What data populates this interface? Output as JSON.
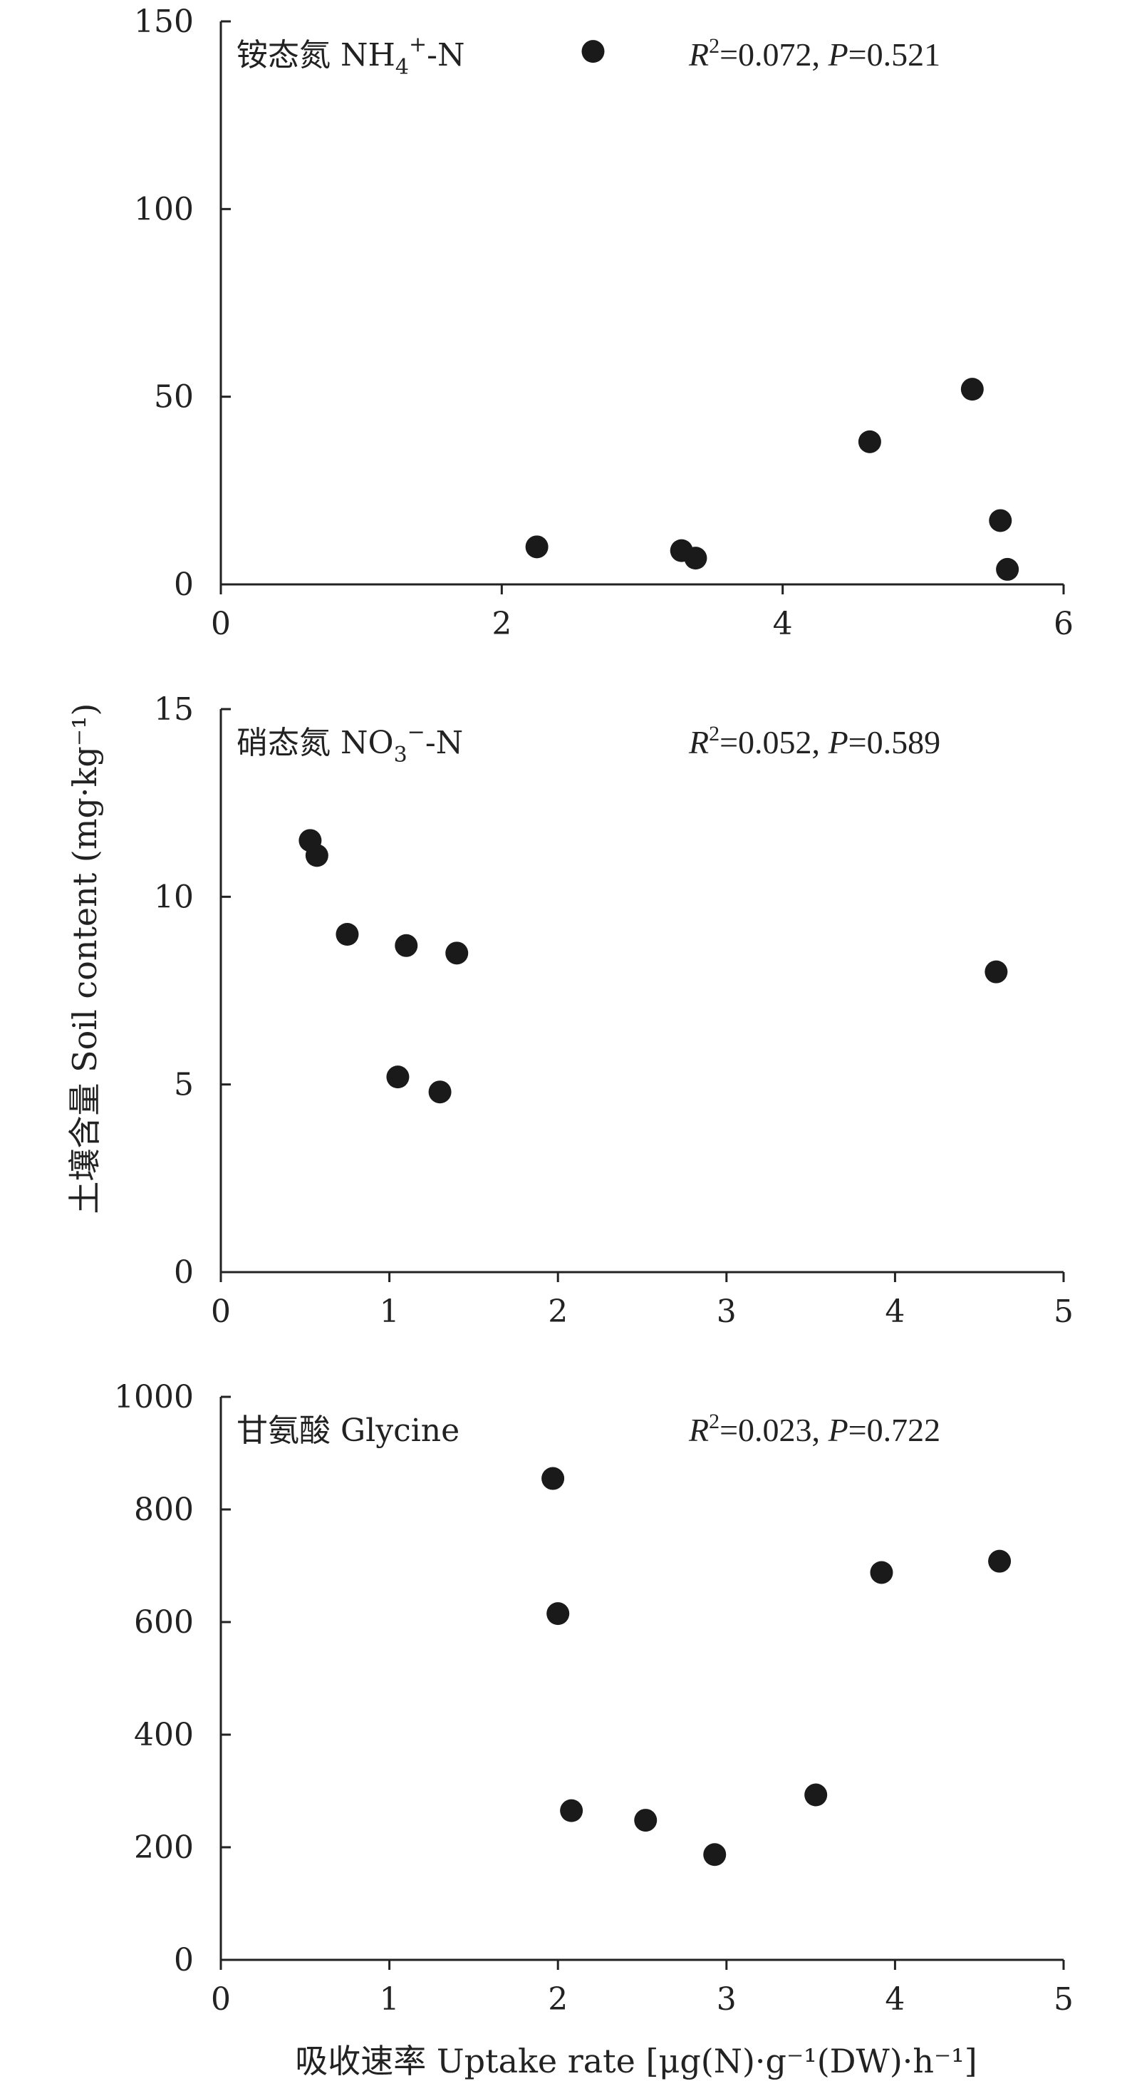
{
  "ylabel": "土壤含量 Soil content (mg·kg⁻¹)",
  "xlabel": "吸收速率 Uptake rate [μg(N)·g⁻¹(DW)·h⁻¹]",
  "chart_data": [
    {
      "type": "scatter",
      "label_cn": "铵态氮",
      "label_en_parts": [
        "NH",
        "4",
        "+",
        "-N"
      ],
      "stats": {
        "r2": "0.072",
        "p": "0.521"
      },
      "xlim": [
        0,
        6
      ],
      "ylim": [
        0,
        150
      ],
      "xticks": [
        0,
        2,
        4,
        6
      ],
      "yticks": [
        0,
        50,
        100,
        150
      ],
      "points": [
        {
          "x": 2.65,
          "y": 142
        },
        {
          "x": 2.25,
          "y": 10
        },
        {
          "x": 3.28,
          "y": 9
        },
        {
          "x": 3.38,
          "y": 7
        },
        {
          "x": 4.62,
          "y": 38
        },
        {
          "x": 5.35,
          "y": 52
        },
        {
          "x": 5.55,
          "y": 17
        },
        {
          "x": 5.6,
          "y": 4
        }
      ]
    },
    {
      "type": "scatter",
      "label_cn": "硝态氮",
      "label_en_parts": [
        "NO",
        "3",
        "−",
        "-N"
      ],
      "stats": {
        "r2": "0.052",
        "p": "0.589"
      },
      "xlim": [
        0,
        5
      ],
      "ylim": [
        0,
        15
      ],
      "xticks": [
        0,
        1,
        2,
        3,
        4,
        5
      ],
      "yticks": [
        0,
        5,
        10,
        15
      ],
      "points": [
        {
          "x": 0.53,
          "y": 11.5
        },
        {
          "x": 0.57,
          "y": 11.1
        },
        {
          "x": 0.75,
          "y": 9.0
        },
        {
          "x": 1.1,
          "y": 8.7
        },
        {
          "x": 1.4,
          "y": 8.5
        },
        {
          "x": 1.05,
          "y": 5.2
        },
        {
          "x": 1.3,
          "y": 4.8
        },
        {
          "x": 4.6,
          "y": 8.0
        }
      ]
    },
    {
      "type": "scatter",
      "label_cn": "甘氨酸",
      "label_en_parts": [
        "Glycine"
      ],
      "stats": {
        "r2": "0.023",
        "p": "0.722"
      },
      "xlim": [
        0,
        5
      ],
      "ylim": [
        0,
        1000
      ],
      "xticks": [
        0,
        1,
        2,
        3,
        4,
        5
      ],
      "yticks": [
        0,
        200,
        400,
        600,
        800,
        1000
      ],
      "points": [
        {
          "x": 1.97,
          "y": 855
        },
        {
          "x": 2.0,
          "y": 615
        },
        {
          "x": 2.08,
          "y": 265
        },
        {
          "x": 2.52,
          "y": 248
        },
        {
          "x": 2.93,
          "y": 187
        },
        {
          "x": 3.53,
          "y": 293
        },
        {
          "x": 3.92,
          "y": 688
        },
        {
          "x": 4.62,
          "y": 708
        }
      ]
    }
  ]
}
